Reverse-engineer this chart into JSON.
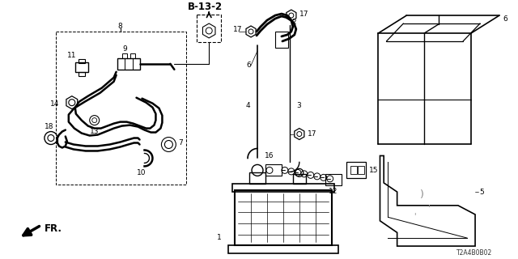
{
  "bg_color": "#ffffff",
  "diagram_id": "T2A4B0B02",
  "line_color": "#000000",
  "font_size": 6.5,
  "fig_w": 6.4,
  "fig_h": 3.2,
  "dpi": 100
}
